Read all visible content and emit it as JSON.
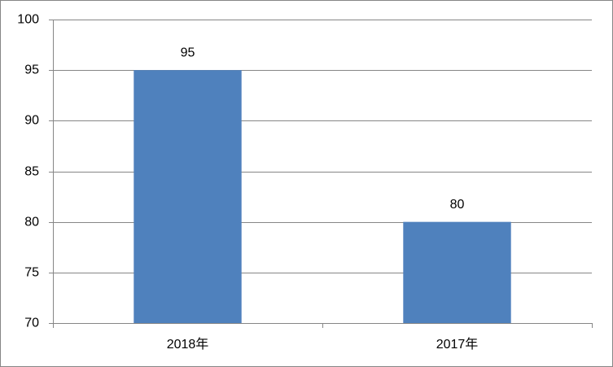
{
  "chart_data": {
    "type": "bar",
    "categories": [
      "2018年",
      "2017年"
    ],
    "values": [
      95,
      80
    ],
    "color": "#4f81bd",
    "ylim": [
      70,
      100
    ],
    "yticks": [
      70,
      75,
      80,
      85,
      90,
      95,
      100
    ],
    "grid": true,
    "data_labels": true
  }
}
